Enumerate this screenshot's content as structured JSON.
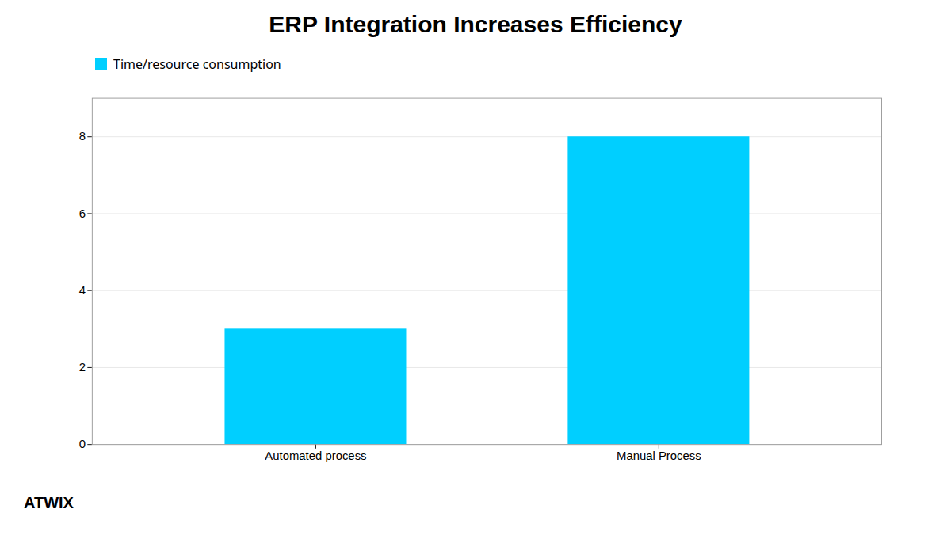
{
  "chart_data": {
    "type": "bar",
    "title": "ERP Integration Increases Efficiency",
    "categories": [
      "Automated process",
      "Manual Process"
    ],
    "series": [
      {
        "name": "Time/resource consumption",
        "color": "#00CFFF",
        "values": [
          3,
          8
        ]
      }
    ],
    "ylim": [
      0,
      9
    ],
    "yticks": [
      0,
      2,
      4,
      6,
      8
    ],
    "grid": true,
    "legend": "upper left",
    "annotations": [
      "ATWIX"
    ]
  }
}
